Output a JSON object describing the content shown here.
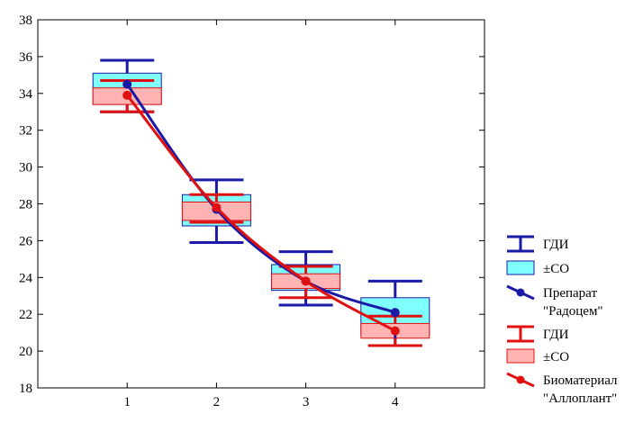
{
  "chart_data": {
    "type": "box",
    "title": "",
    "xlabel": "",
    "ylabel": "",
    "categories": [
      "1",
      "2",
      "3",
      "4"
    ],
    "x": [
      1,
      2,
      3,
      4
    ],
    "xlim": [
      0.0,
      5.0
    ],
    "ylim": [
      18,
      38
    ],
    "yticks": [
      18,
      20,
      22,
      24,
      26,
      28,
      30,
      32,
      34,
      36,
      38
    ],
    "grid": false,
    "legend_position": "right",
    "series": [
      {
        "name_lines": [
          "Препарат",
          "\"Радоцем\""
        ],
        "whisker_label": "ГДИ",
        "box_label": "±СО",
        "color": "#1a1aa6",
        "box_fill": "#80ffff",
        "mean": [
          34.5,
          27.7,
          23.8,
          22.1
        ],
        "sd_low": [
          33.4,
          26.8,
          23.3,
          20.9
        ],
        "sd_high": [
          35.1,
          28.5,
          24.7,
          22.9
        ],
        "ci_low": [
          33.0,
          25.9,
          22.5,
          20.3
        ],
        "ci_high": [
          35.8,
          29.3,
          25.4,
          23.8
        ]
      },
      {
        "name_lines": [
          "Биоматериал",
          "\"Аллоплант\""
        ],
        "whisker_label": "ГДИ",
        "box_label": "±СО",
        "color": "#e01010",
        "box_fill": "#ffb3b3",
        "mean": [
          33.9,
          27.8,
          23.8,
          21.1
        ],
        "sd_low": [
          33.4,
          27.1,
          23.4,
          20.7
        ],
        "sd_high": [
          34.3,
          28.1,
          24.2,
          21.5
        ],
        "ci_low": [
          33.0,
          27.0,
          22.9,
          20.3
        ],
        "ci_high": [
          34.7,
          28.5,
          24.6,
          21.9
        ]
      }
    ]
  }
}
